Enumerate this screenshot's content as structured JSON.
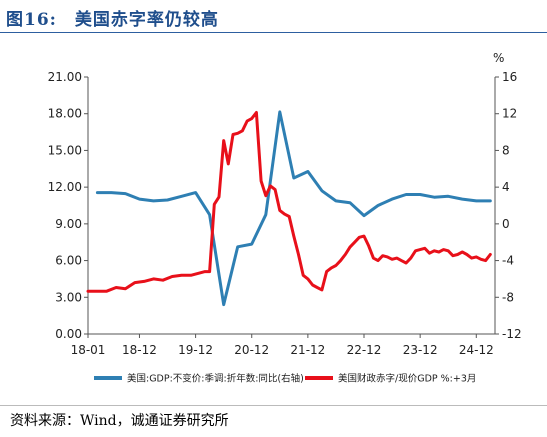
{
  "figure_title": "图16:　美国赤字率仍较高",
  "source_text": "资料来源：Wind，诚通证券研究所",
  "colors": {
    "blue": "#2e7fb3",
    "red": "#e8101a",
    "title": "#1f4e8c"
  },
  "chart_data": {
    "type": "line",
    "x_ticks": [
      "18-01",
      "18-12",
      "19-12",
      "20-12",
      "21-12",
      "22-12",
      "23-12",
      "24-12"
    ],
    "left_axis": {
      "ylim": [
        0,
        21
      ],
      "ticks": [
        "0.00",
        "3.00",
        "6.00",
        "9.00",
        "12.00",
        "15.00",
        "18.00",
        "21.00"
      ]
    },
    "right_axis": {
      "unit": "%",
      "ylim": [
        -12,
        16
      ],
      "ticks": [
        "-12",
        "-8",
        "-4",
        "0",
        "4",
        "8",
        "12",
        "16"
      ]
    },
    "grid": false,
    "legend_position": "bottom",
    "series": [
      {
        "name": "美国:GDP:不变价:季调:折年数:同比(右轴)",
        "axis": "right",
        "color": "#2e7fb3",
        "x": [
          "2018-03",
          "2018-06",
          "2018-09",
          "2018-12",
          "2019-03",
          "2019-06",
          "2019-09",
          "2019-12",
          "2020-03",
          "2020-06",
          "2020-09",
          "2020-12",
          "2021-03",
          "2021-06",
          "2021-09",
          "2021-12",
          "2022-03",
          "2022-06",
          "2022-09",
          "2022-12",
          "2023-03",
          "2023-06",
          "2023-09",
          "2023-12",
          "2024-03",
          "2024-06",
          "2024-09",
          "2024-12",
          "2025-03"
        ],
        "values": [
          3.4,
          3.4,
          3.3,
          2.7,
          2.5,
          2.6,
          3.0,
          3.4,
          1.0,
          -8.8,
          -2.5,
          -2.2,
          1.0,
          12.2,
          5.0,
          5.7,
          3.6,
          2.5,
          2.3,
          0.9,
          2.0,
          2.7,
          3.2,
          3.2,
          2.9,
          3.0,
          2.7,
          2.5,
          2.5
        ]
      },
      {
        "name": "美国财政赤字/现价GDP %:+3月",
        "axis": "left",
        "color": "#e8101a",
        "x": [
          "2018-01",
          "2018-03",
          "2018-05",
          "2018-07",
          "2018-09",
          "2018-11",
          "2019-01",
          "2019-03",
          "2019-05",
          "2019-07",
          "2019-09",
          "2019-11",
          "2020-01",
          "2020-02",
          "2020-03",
          "2020-04",
          "2020-05",
          "2020-06",
          "2020-07",
          "2020-08",
          "2020-09",
          "2020-10",
          "2020-11",
          "2020-12",
          "2021-01",
          "2021-02",
          "2021-03",
          "2021-04",
          "2021-05",
          "2021-06",
          "2021-07",
          "2021-08",
          "2021-09",
          "2021-10",
          "2021-11",
          "2021-12",
          "2022-01",
          "2022-02",
          "2022-03",
          "2022-04",
          "2022-05",
          "2022-06",
          "2022-07",
          "2022-08",
          "2022-09",
          "2022-10",
          "2022-11",
          "2022-12",
          "2023-01",
          "2023-02",
          "2023-03",
          "2023-04",
          "2023-05",
          "2023-06",
          "2023-07",
          "2023-08",
          "2023-09",
          "2023-10",
          "2023-11",
          "2023-12",
          "2024-01",
          "2024-02",
          "2024-03",
          "2024-04",
          "2024-05",
          "2024-06",
          "2024-07",
          "2024-08",
          "2024-09",
          "2024-10",
          "2024-11",
          "2024-12",
          "2025-01",
          "2025-02",
          "2025-03"
        ],
        "values": [
          3.5,
          3.5,
          3.5,
          3.8,
          3.7,
          4.2,
          4.3,
          4.5,
          4.4,
          4.7,
          4.8,
          4.8,
          5.0,
          5.1,
          5.1,
          10.6,
          11.2,
          15.8,
          13.9,
          16.3,
          16.4,
          16.6,
          17.4,
          17.6,
          18.1,
          12.5,
          11.3,
          12.1,
          11.8,
          10.1,
          9.8,
          9.6,
          8.0,
          6.5,
          4.8,
          4.5,
          4.0,
          3.8,
          3.6,
          5.1,
          5.4,
          5.6,
          6.0,
          6.5,
          7.1,
          7.5,
          7.9,
          8.0,
          7.2,
          6.2,
          6.0,
          6.4,
          6.3,
          6.1,
          6.2,
          6.0,
          5.8,
          6.2,
          6.8,
          6.9,
          7.0,
          6.6,
          6.8,
          6.7,
          6.9,
          6.8,
          6.4,
          6.5,
          6.7,
          6.5,
          6.2,
          6.3,
          6.1,
          6.0,
          6.5
        ]
      }
    ]
  }
}
